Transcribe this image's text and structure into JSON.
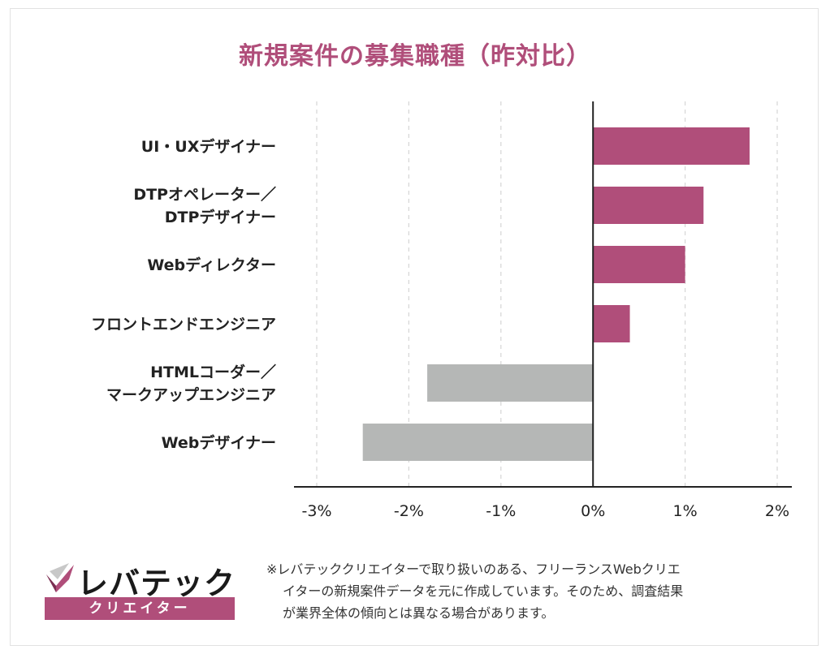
{
  "chart_data": {
    "type": "bar",
    "orientation": "horizontal",
    "title": "新規案件の募集職種（昨対比）",
    "categories": [
      [
        "UI・UXデザイナー"
      ],
      [
        "DTPオペレーター／",
        "DTPデザイナー"
      ],
      [
        "Webディレクター"
      ],
      [
        "フロントエンドエンジニア"
      ],
      [
        "HTMLコーダー／",
        "マークアップエンジニア"
      ],
      [
        "Webデザイナー"
      ]
    ],
    "values": [
      1.7,
      1.2,
      1.0,
      0.4,
      -1.8,
      -2.5
    ],
    "xlim": [
      -3,
      2
    ],
    "xticks": [
      -3,
      -2,
      -1,
      0,
      1,
      2
    ],
    "xtick_labels": [
      "-3%",
      "-2%",
      "-1%",
      "0%",
      "1%",
      "2%"
    ],
    "positive_color": "#b04e7a",
    "negative_color": "#b5b7b6",
    "grid": "dashed vertical"
  },
  "logo": {
    "wordmark": "レバテック",
    "sub": "クリエイター"
  },
  "note_lines": [
    "※レバテッククリエイターで取り扱いのある、フリーランスWebクリエ",
    "イターの新規案件データを元に作成しています。そのため、調査結果",
    "が業界全体の傾向とは異なる場合があります。"
  ],
  "colors": {
    "accent": "#b04e7a",
    "neutral": "#b5b7b6"
  }
}
